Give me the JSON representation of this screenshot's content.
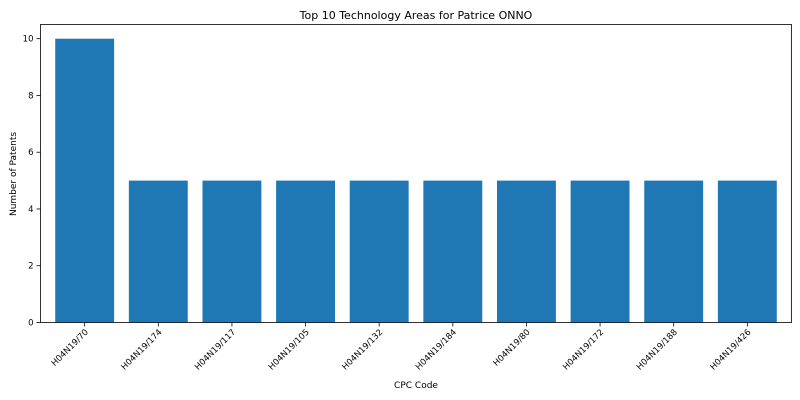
{
  "chart_data": {
    "type": "bar",
    "title": "Top 10 Technology Areas for Patrice ONNO",
    "xlabel": "CPC Code",
    "ylabel": "Number of Patents",
    "categories": [
      "H04N19/70",
      "H04N19/174",
      "H04N19/117",
      "H04N19/105",
      "H04N19/132",
      "H04N19/184",
      "H04N19/80",
      "H04N19/172",
      "H04N19/188",
      "H04N19/426"
    ],
    "values": [
      10,
      5,
      5,
      5,
      5,
      5,
      5,
      5,
      5,
      5
    ],
    "ylim": [
      0,
      10.5
    ],
    "yticks": [
      0,
      2,
      4,
      6,
      8,
      10
    ],
    "grid": false,
    "legend": "none",
    "bar_color": "#1f77b4"
  }
}
